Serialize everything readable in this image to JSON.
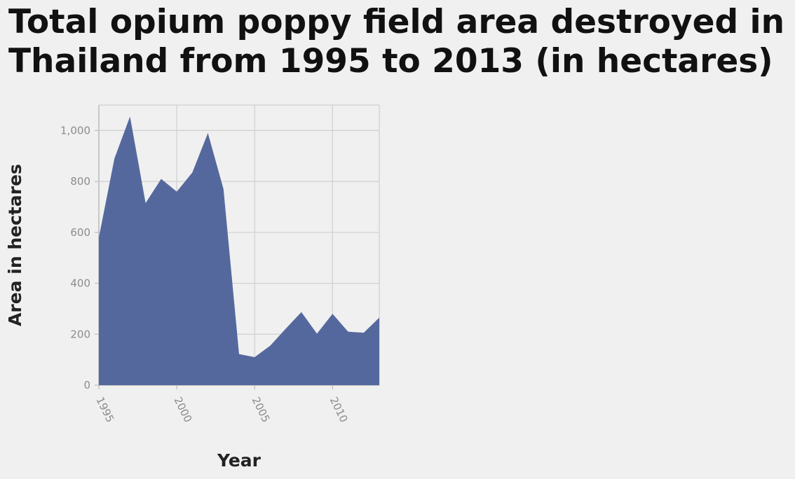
{
  "chart_data": {
    "type": "area",
    "title": "Total opium poppy field area destroyed in Thailand from 1995 to 2013 (in hectares)",
    "xlabel": "Year",
    "ylabel": "Area in hectares",
    "xlim": [
      1995,
      2013
    ],
    "ylim": [
      0,
      1100
    ],
    "x_ticks": [
      1995,
      2000,
      2005,
      2010
    ],
    "y_ticks": [
      0,
      200,
      400,
      600,
      800,
      1000
    ],
    "y_tick_labels": [
      "0",
      "200",
      "400",
      "600",
      "800",
      "1,000"
    ],
    "grid": true,
    "fill_color": "#55689e",
    "x": [
      1995,
      1996,
      1997,
      1998,
      1999,
      2000,
      2001,
      2002,
      2003,
      2004,
      2005,
      2006,
      2007,
      2008,
      2009,
      2010,
      2011,
      2012,
      2013
    ],
    "values": [
      580,
      890,
      1055,
      715,
      810,
      760,
      835,
      990,
      770,
      122,
      110,
      155,
      222,
      287,
      202,
      280,
      210,
      206,
      265
    ]
  }
}
